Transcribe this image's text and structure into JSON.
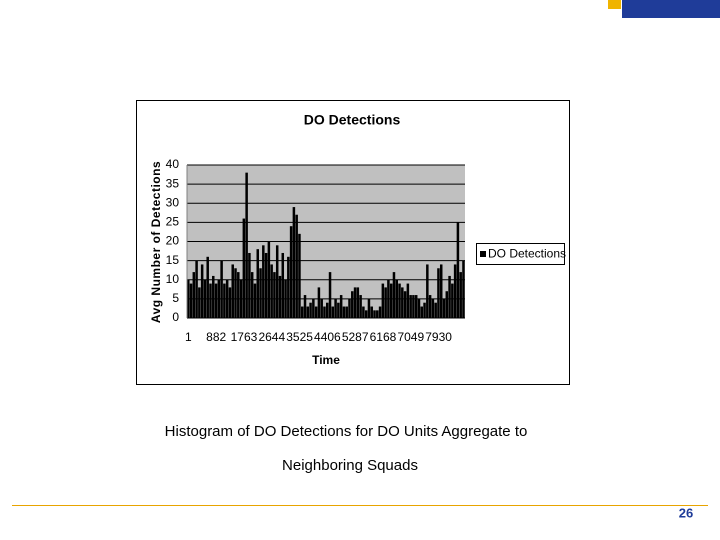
{
  "chart_data": {
    "type": "bar",
    "title": "DO Detections",
    "y_label": "Avg Number of Detections",
    "x_label": "Time",
    "categories": [
      "1",
      null,
      null,
      null,
      null,
      null,
      null,
      null,
      null,
      null,
      "882",
      null,
      null,
      null,
      null,
      null,
      null,
      null,
      null,
      null,
      "1763",
      null,
      null,
      null,
      null,
      null,
      null,
      null,
      null,
      null,
      "2644",
      null,
      null,
      null,
      null,
      null,
      null,
      null,
      null,
      null,
      "3525",
      null,
      null,
      null,
      null,
      null,
      null,
      null,
      null,
      null,
      "4406",
      null,
      null,
      null,
      null,
      null,
      null,
      null,
      null,
      null,
      "5287",
      null,
      null,
      null,
      null,
      null,
      null,
      null,
      null,
      null,
      "6168",
      null,
      null,
      null,
      null,
      null,
      null,
      null,
      null,
      null,
      "7049",
      null,
      null,
      null,
      null,
      null,
      null,
      null,
      null,
      null,
      "7930",
      null,
      null,
      null,
      null,
      null,
      null,
      null,
      null,
      null
    ],
    "series": [
      {
        "name": "DO Detections",
        "color": "#000000",
        "values": [
          10,
          9,
          12,
          15,
          8,
          14,
          10,
          16,
          9,
          11,
          9,
          10,
          15,
          9,
          10,
          8,
          14,
          13,
          12,
          10,
          26,
          38,
          17,
          12,
          9,
          18,
          13,
          19,
          17,
          20,
          14,
          12,
          19,
          11,
          17,
          10,
          16,
          24,
          29,
          27,
          22,
          3,
          6,
          3,
          4,
          5,
          3,
          8,
          5,
          3,
          4,
          12,
          3,
          5,
          4,
          6,
          3,
          3,
          5,
          7,
          8,
          8,
          6,
          3,
          2,
          5,
          3,
          2,
          2,
          3,
          9,
          8,
          10,
          9,
          12,
          10,
          9,
          8,
          7,
          9,
          6,
          6,
          6,
          5,
          3,
          4,
          14,
          6,
          5,
          4,
          13,
          14,
          5,
          7,
          11,
          9,
          14,
          25,
          12,
          15
        ]
      }
    ],
    "ylim": [
      0,
      40
    ],
    "yticks": [
      0,
      5,
      10,
      15,
      20,
      25,
      30,
      35,
      40
    ],
    "grid": true,
    "legend": "right"
  },
  "caption": [
    "Histogram of DO Detections for DO Units Aggregate to",
    "Neighboring Squads"
  ],
  "page_number": "26"
}
